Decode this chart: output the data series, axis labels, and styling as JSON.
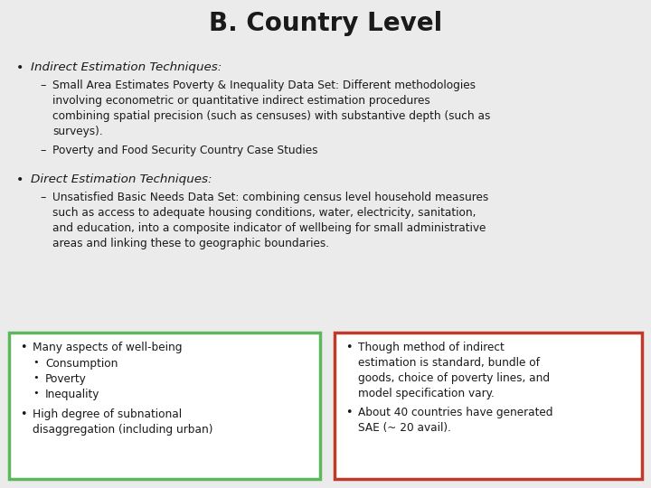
{
  "title": "B. Country Level",
  "bg_color": "#ebebeb",
  "title_fontsize": 20,
  "body_fontsize": 9.2,
  "bullet1_header": "Indirect Estimation Techniques:",
  "bullet1_sub1": "Small Area Estimates Poverty & Inequality Data Set: Different methodologies\ninvolving econometric or quantitative indirect estimation procedures\ncombining spatial precision (such as censuses) with substantive depth (such as\nsurveys).",
  "bullet1_sub2": "Poverty and Food Security Country Case Studies",
  "bullet2_header": "Direct Estimation Techniques:",
  "bullet2_sub1": "Unsatisfied Basic Needs Data Set: combining census level household measures\nsuch as access to adequate housing conditions, water, electricity, sanitation,\nand education, into a composite indicator of wellbeing for small administrative\nareas and linking these to geographic boundaries.",
  "box_left_color": "#5cb85c",
  "box_right_color": "#c0392b",
  "text_color": "#1a1a1a",
  "white": "#ffffff",
  "font_family": "DejaVu Sans"
}
